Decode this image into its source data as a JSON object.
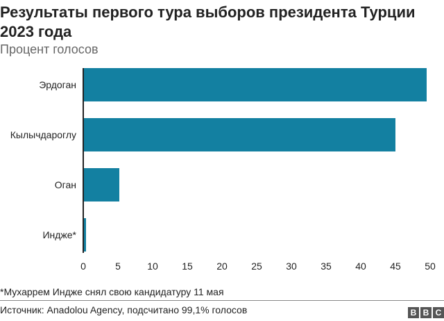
{
  "header": {
    "title": "Результаты первого тура выборов президента Турции 2023 года",
    "subtitle": "Процент голосов"
  },
  "chart_data": {
    "type": "bar",
    "orientation": "horizontal",
    "title": "Результаты первого тура выборов президента Турции 2023 года",
    "subtitle": "Процент голосов",
    "categories": [
      "Эрдоган",
      "Кылычдароглу",
      "Оган",
      "Индже*"
    ],
    "values": [
      49.5,
      45.0,
      5.2,
      0.4
    ],
    "xlabel": "",
    "ylabel": "",
    "xlim": [
      0,
      50
    ],
    "xticks": [
      "0",
      "5",
      "10",
      "15",
      "20",
      "25",
      "30",
      "35",
      "40",
      "45",
      "50"
    ],
    "grid": false,
    "legend": null,
    "bar_color": "#1380A1"
  },
  "footer": {
    "note": "*Мухаррем Индже снял свою кандидатуру 11 мая",
    "source": "Источник: Anadolou Agency, подсчитано 99,1% голосов",
    "logo": [
      "B",
      "B",
      "C"
    ]
  }
}
